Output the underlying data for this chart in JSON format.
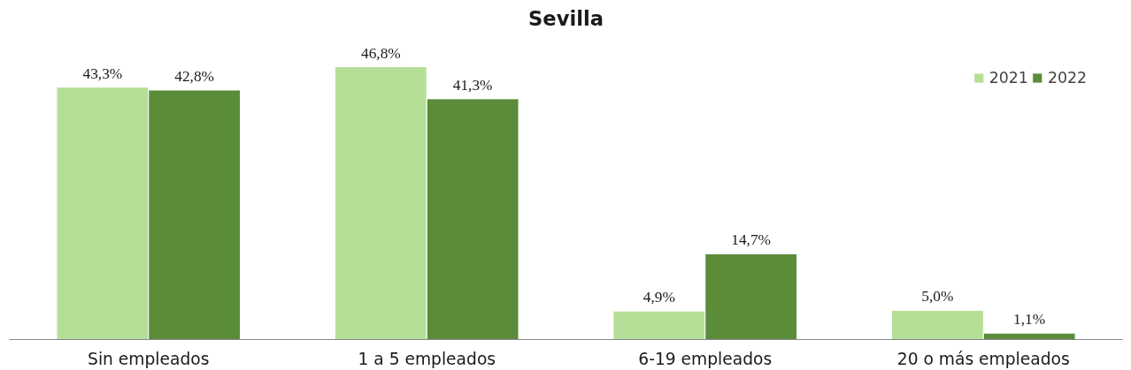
{
  "chart_data": {
    "type": "bar",
    "title": "Sevilla",
    "categories": [
      "Sin empleados",
      "1 a 5 empleados",
      "6-19 empleados",
      "20 o más empleados"
    ],
    "series": [
      {
        "name": "2021",
        "color": "#b5df96",
        "values": [
          43.3,
          46.8,
          4.9,
          5.0
        ],
        "value_labels": [
          "43,3%",
          "46,8%",
          "4,9%",
          "5,0%"
        ]
      },
      {
        "name": "2022",
        "color": "#5a8c3a",
        "values": [
          42.8,
          41.3,
          14.7,
          1.1
        ],
        "value_labels": [
          "42,8%",
          "41,3%",
          "14,7%",
          "1,1%"
        ]
      }
    ],
    "legend": "top right",
    "grid": false
  }
}
